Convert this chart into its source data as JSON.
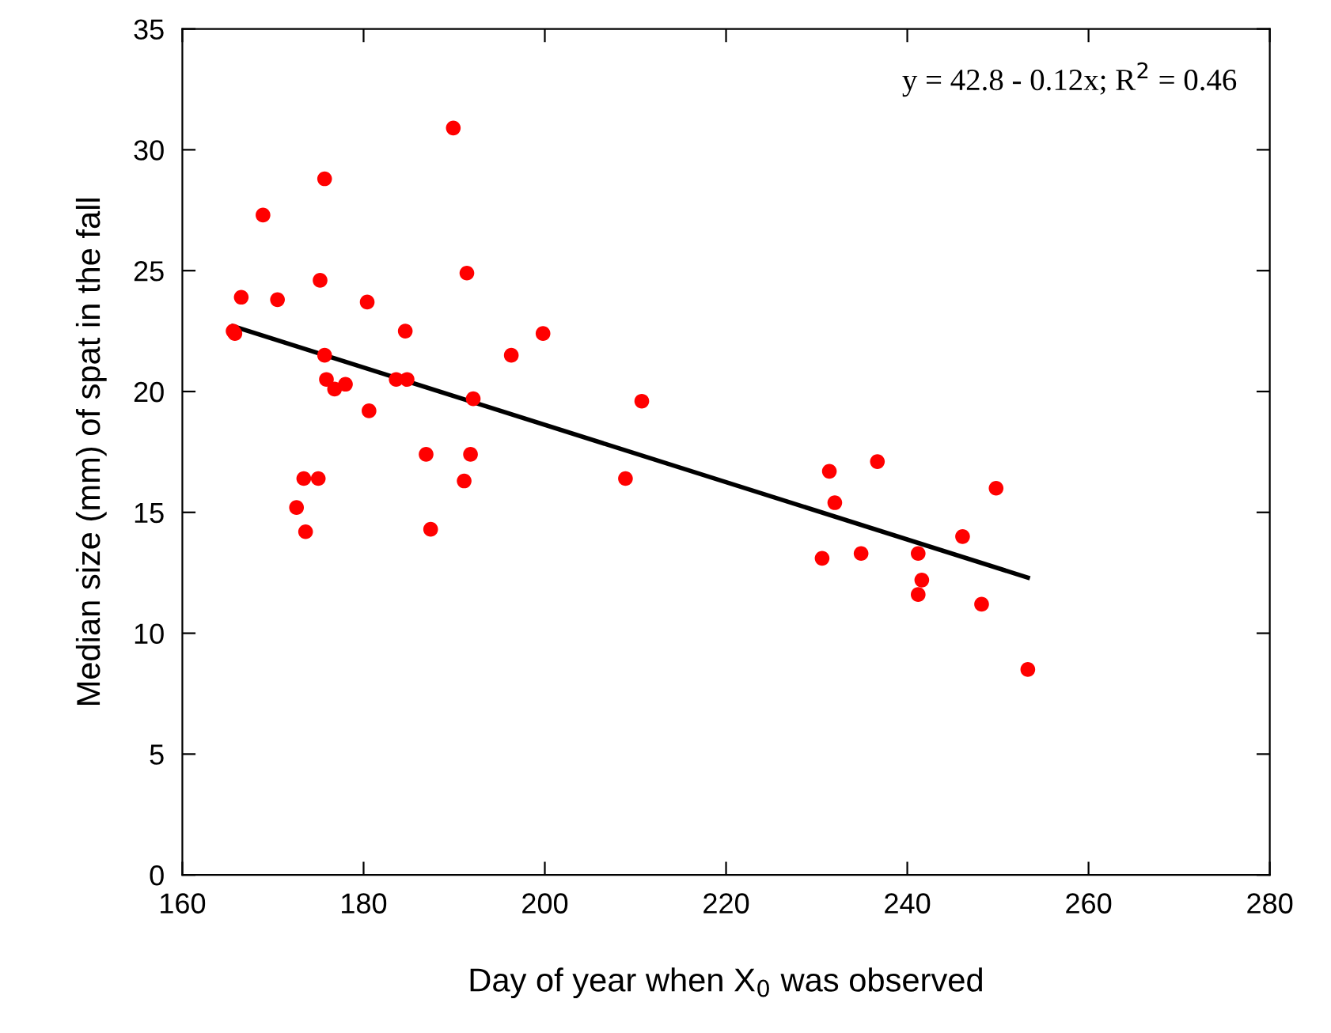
{
  "chart_data": {
    "type": "scatter",
    "xlabel": "Day of year when X$_{0}$ was observed",
    "ylabel": "Median size (mm) of spat in the fall",
    "annotations": [
      "y = 42.8 - 0.12x; R$^{2}$ = 0.46"
    ],
    "series": [
      {
        "color": "#ff0000",
        "marker": "circle",
        "x": [
          165.6,
          165.8,
          166.5,
          168.9,
          170.5,
          172.6,
          173.4,
          173.6,
          175.0,
          175.2,
          175.7,
          175.7,
          175.9,
          176.8,
          178.0,
          180.4,
          180.6,
          183.6,
          184.6,
          184.8,
          186.9,
          187.4,
          189.9,
          191.1,
          191.4,
          191.8,
          192.1,
          196.3,
          199.8,
          208.9,
          210.7,
          230.6,
          231.4,
          232.0,
          234.9,
          236.7,
          241.2,
          241.2,
          241.6,
          246.1,
          248.2,
          249.8,
          253.3
        ],
        "values": [
          22.5,
          22.4,
          23.9,
          27.3,
          23.8,
          15.2,
          16.4,
          14.2,
          16.4,
          24.6,
          28.8,
          21.5,
          20.5,
          20.1,
          20.3,
          23.7,
          19.2,
          20.5,
          22.5,
          20.5,
          17.4,
          14.3,
          30.9,
          16.3,
          24.9,
          17.4,
          19.7,
          21.5,
          22.4,
          16.4,
          19.6,
          13.1,
          16.7,
          15.4,
          13.3,
          17.1,
          13.3,
          11.6,
          12.2,
          14.0,
          11.2,
          16.0,
          8.5
        ]
      },
      {
        "type": "line",
        "color": "#000000",
        "marker": "none",
        "x": [
          165.6,
          253.3
        ],
        "values": [
          22.7,
          12.3
        ]
      }
    ],
    "xlim": [
      160,
      280
    ],
    "xticks": [
      160,
      180,
      200,
      220,
      240,
      260,
      280
    ],
    "ylim": [
      0,
      35
    ],
    "yticks": [
      0,
      5,
      10,
      15,
      20,
      25,
      30,
      35
    ],
    "grid": false,
    "legend": false
  }
}
